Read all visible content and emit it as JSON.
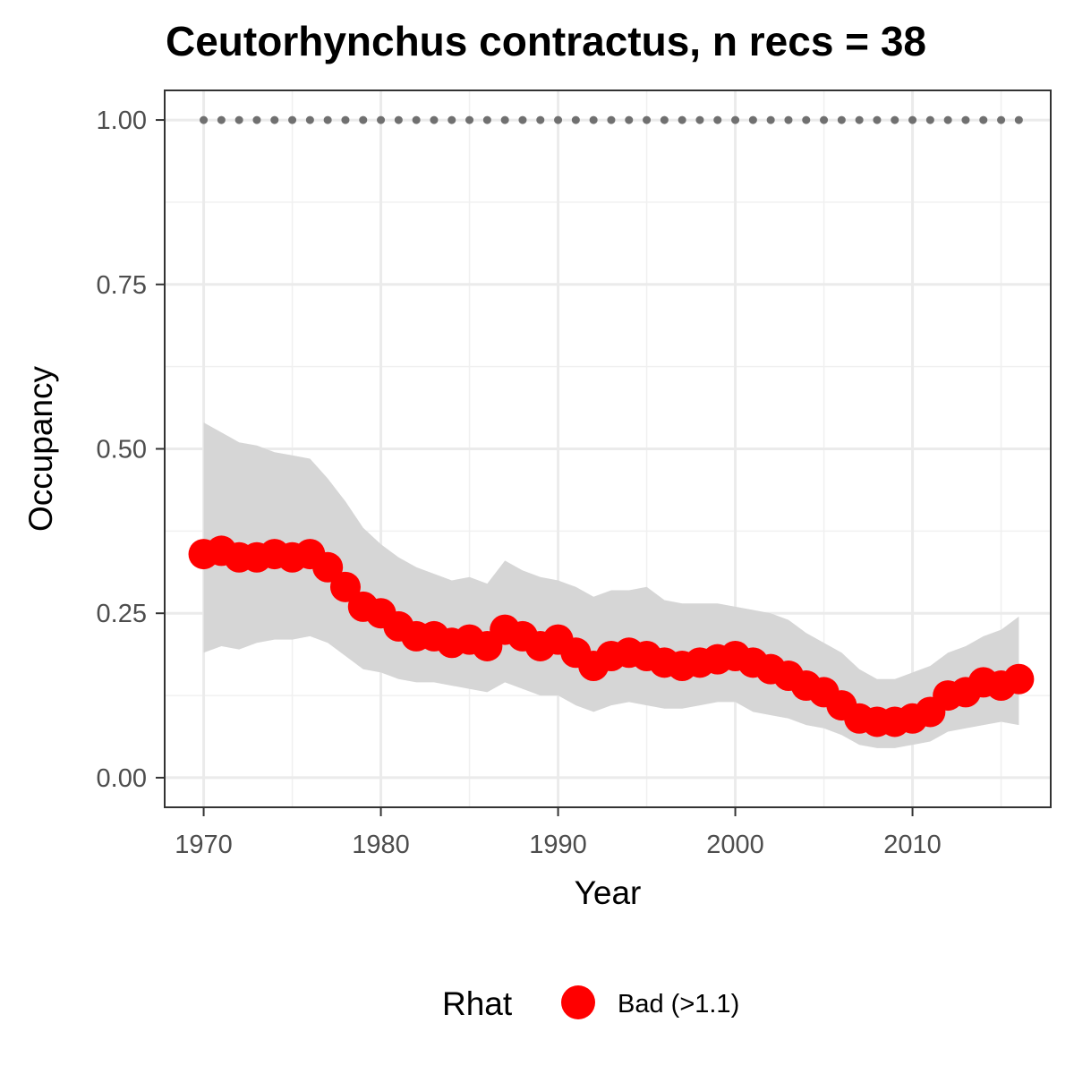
{
  "chart_data": {
    "type": "line",
    "title": "Ceutorhynchus contractus, n recs = 38",
    "xlabel": "Year",
    "ylabel": "Occupancy",
    "xlim": [
      1967.8,
      2017.8
    ],
    "ylim": [
      -0.045,
      1.045
    ],
    "x_ticks": [
      1970,
      1980,
      1990,
      2000,
      2010
    ],
    "x_tick_labels": [
      "1970",
      "1980",
      "1990",
      "2000",
      "2010"
    ],
    "y_ticks": [
      0,
      0.25,
      0.5,
      0.75,
      1
    ],
    "y_tick_labels": [
      "0.00",
      "0.25",
      "0.50",
      "0.75",
      "1.00"
    ],
    "grid": true,
    "legend": {
      "title": "Rhat",
      "position": "bottom",
      "entries": [
        {
          "label": "Bad (>1.1)",
          "color": "#ff0000"
        }
      ]
    },
    "colors": {
      "series": "#ff0000",
      "ribbon": "#d6d6d6",
      "reference": "#707070"
    },
    "x": [
      1970,
      1971,
      1972,
      1973,
      1974,
      1975,
      1976,
      1977,
      1978,
      1979,
      1980,
      1981,
      1982,
      1983,
      1984,
      1985,
      1986,
      1987,
      1988,
      1989,
      1990,
      1991,
      1992,
      1993,
      1994,
      1995,
      1996,
      1997,
      1998,
      1999,
      2000,
      2001,
      2002,
      2003,
      2004,
      2005,
      2006,
      2007,
      2008,
      2009,
      2010,
      2011,
      2012,
      2013,
      2014,
      2015,
      2016
    ],
    "series": [
      {
        "values": [
          0.34,
          0.345,
          0.335,
          0.335,
          0.34,
          0.335,
          0.34,
          0.32,
          0.29,
          0.26,
          0.25,
          0.23,
          0.215,
          0.215,
          0.205,
          0.21,
          0.2,
          0.225,
          0.215,
          0.2,
          0.21,
          0.19,
          0.17,
          0.185,
          0.19,
          0.185,
          0.175,
          0.17,
          0.175,
          0.18,
          0.185,
          0.175,
          0.165,
          0.155,
          0.14,
          0.13,
          0.11,
          0.09,
          0.085,
          0.085,
          0.09,
          0.1,
          0.125,
          0.13,
          0.145,
          0.14,
          0.15
        ],
        "lower": [
          0.19,
          0.2,
          0.195,
          0.205,
          0.21,
          0.21,
          0.215,
          0.205,
          0.185,
          0.165,
          0.16,
          0.15,
          0.145,
          0.145,
          0.14,
          0.135,
          0.13,
          0.145,
          0.135,
          0.125,
          0.125,
          0.11,
          0.1,
          0.11,
          0.115,
          0.11,
          0.105,
          0.105,
          0.11,
          0.115,
          0.115,
          0.1,
          0.095,
          0.09,
          0.08,
          0.075,
          0.065,
          0.05,
          0.045,
          0.045,
          0.05,
          0.055,
          0.07,
          0.075,
          0.08,
          0.085,
          0.08
        ],
        "upper": [
          0.54,
          0.525,
          0.51,
          0.505,
          0.495,
          0.49,
          0.485,
          0.455,
          0.42,
          0.38,
          0.355,
          0.335,
          0.32,
          0.31,
          0.3,
          0.305,
          0.295,
          0.33,
          0.315,
          0.305,
          0.3,
          0.29,
          0.275,
          0.285,
          0.285,
          0.29,
          0.27,
          0.265,
          0.265,
          0.265,
          0.26,
          0.255,
          0.25,
          0.24,
          0.22,
          0.205,
          0.19,
          0.165,
          0.15,
          0.15,
          0.16,
          0.17,
          0.19,
          0.2,
          0.215,
          0.225,
          0.245
        ]
      },
      {
        "values": [
          1,
          1,
          1,
          1,
          1,
          1,
          1,
          1,
          1,
          1,
          1,
          1,
          1,
          1,
          1,
          1,
          1,
          1,
          1,
          1,
          1,
          1,
          1,
          1,
          1,
          1,
          1,
          1,
          1,
          1,
          1,
          1,
          1,
          1,
          1,
          1,
          1,
          1,
          1,
          1,
          1,
          1,
          1,
          1,
          1,
          1,
          1
        ]
      }
    ]
  }
}
